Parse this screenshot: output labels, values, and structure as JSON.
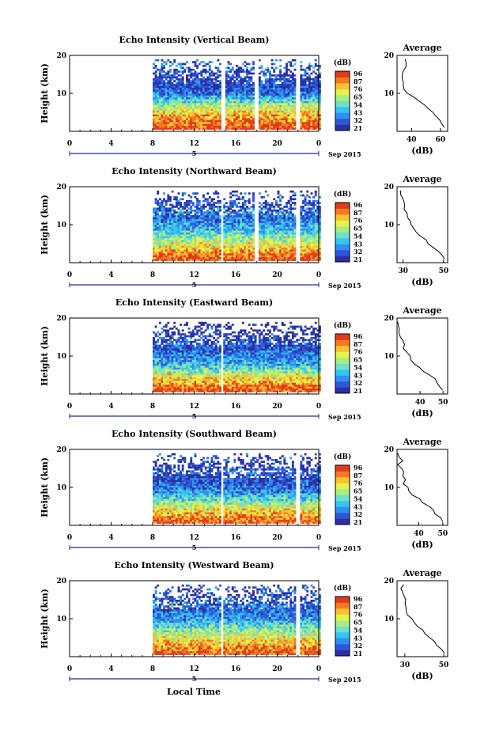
{
  "figure": {
    "xlabel": "Local Time",
    "date_label": "Sep 2015",
    "day_marker": "5"
  },
  "colorbar": {
    "unit_label": "(dB)",
    "ticks": [
      "96",
      "87",
      "76",
      "65",
      "54",
      "43",
      "32",
      "21"
    ],
    "colors": [
      "#2b2fa3",
      "#2f56d6",
      "#2f8ff2",
      "#33c6f0",
      "#6fe0c8",
      "#a8ec84",
      "#e6f24a",
      "#f7c132",
      "#f47a22",
      "#e13a1c"
    ]
  },
  "chart_data": [
    {
      "type": "heatmap",
      "title": "Echo Intensity (Vertical Beam)",
      "ylabel": "Height (km)",
      "x_ticks": [
        "0",
        "4",
        "8",
        "12",
        "16",
        "20",
        "0"
      ],
      "y_ticks": [
        "20",
        "10"
      ],
      "xlim": [
        0,
        24
      ],
      "ylim": [
        0,
        20
      ],
      "data_start_hour": 8,
      "gaps_hours": [
        [
          14.5,
          14.9
        ],
        [
          17.8,
          18.1
        ],
        [
          21.7,
          22.1
        ]
      ],
      "top_height_km": 19,
      "profile": {
        "title": "Average",
        "xlabel": "(dB)",
        "x_ticks": [
          "40",
          "60"
        ],
        "xlim": [
          30,
          65
        ],
        "y_ticks": [
          "20",
          "10"
        ],
        "height_km": [
          1,
          2,
          3,
          4,
          5,
          6,
          7,
          8,
          9,
          10,
          11,
          12,
          13,
          14,
          15,
          16,
          17,
          18,
          19
        ],
        "value_db": [
          63,
          61,
          59,
          57,
          55,
          52,
          49,
          45,
          41,
          37,
          35,
          34,
          34,
          33,
          34,
          35,
          36,
          37,
          35
        ]
      }
    },
    {
      "type": "heatmap",
      "title": "Echo Intensity (Northward Beam)",
      "ylabel": "Height (km)",
      "x_ticks": [
        "0",
        "4",
        "8",
        "12",
        "16",
        "20",
        "0"
      ],
      "y_ticks": [
        "20",
        "10"
      ],
      "xlim": [
        0,
        24
      ],
      "ylim": [
        0,
        20
      ],
      "data_start_hour": 8,
      "gaps_hours": [
        [
          14.5,
          14.8
        ],
        [
          17.8,
          18.1
        ],
        [
          21.8,
          22.1
        ]
      ],
      "top_height_km": 19,
      "profile": {
        "title": "Average",
        "xlabel": "(dB)",
        "x_ticks": [
          "30",
          "50"
        ],
        "xlim": [
          27,
          52
        ],
        "y_ticks": [
          "20",
          "10"
        ],
        "height_km": [
          1,
          2,
          3,
          4,
          5,
          6,
          7,
          8,
          9,
          10,
          11,
          12,
          13,
          14,
          15,
          16,
          17,
          18,
          19
        ],
        "value_db": [
          50,
          49,
          47,
          45,
          43,
          41,
          39,
          37,
          35,
          34,
          33,
          32,
          32,
          31,
          30,
          30,
          29,
          29,
          28
        ]
      }
    },
    {
      "type": "heatmap",
      "title": "Echo Intensity (Eastward Beam)",
      "ylabel": "Height (km)",
      "x_ticks": [
        "0",
        "4",
        "8",
        "12",
        "16",
        "20",
        "0"
      ],
      "y_ticks": [
        "20",
        "10"
      ],
      "xlim": [
        0,
        24
      ],
      "ylim": [
        0,
        20
      ],
      "data_start_hour": 8,
      "gaps_hours": [
        [
          14.5,
          14.8
        ]
      ],
      "top_height_km": 19,
      "profile": {
        "title": "Average",
        "xlabel": "(dB)",
        "x_ticks": [
          "40",
          "50"
        ],
        "xlim": [
          30,
          52
        ],
        "y_ticks": [
          "20",
          "10"
        ],
        "height_km": [
          1,
          2,
          3,
          4,
          5,
          6,
          7,
          8,
          9,
          10,
          11,
          12,
          13,
          14,
          15,
          16,
          17,
          18,
          19
        ],
        "value_db": [
          50,
          49,
          47,
          46,
          44,
          41,
          39,
          37,
          36,
          35,
          34,
          33,
          33,
          32,
          32,
          31,
          31,
          30,
          31
        ]
      }
    },
    {
      "type": "heatmap",
      "title": "Echo Intensity (Southward Beam)",
      "ylabel": "Height (km)",
      "x_ticks": [
        "0",
        "4",
        "8",
        "12",
        "16",
        "20",
        "0"
      ],
      "y_ticks": [
        "20",
        "10"
      ],
      "xlim": [
        0,
        24
      ],
      "ylim": [
        0,
        20
      ],
      "data_start_hour": 8,
      "gaps_hours": [
        [
          14.5,
          14.8
        ],
        [
          21.8,
          22.1
        ]
      ],
      "top_height_km": 19,
      "profile": {
        "title": "Average",
        "xlabel": "(dB)",
        "x_ticks": [
          "40",
          "50"
        ],
        "xlim": [
          31,
          52
        ],
        "y_ticks": [
          "20",
          "10"
        ],
        "height_km": [
          1,
          2,
          3,
          4,
          5,
          6,
          7,
          8,
          9,
          10,
          11,
          12,
          13,
          14,
          15,
          16,
          17,
          18,
          19
        ],
        "value_db": [
          50,
          49,
          47,
          46,
          44,
          42,
          40,
          38,
          36,
          35,
          34,
          34,
          33,
          34,
          33,
          32,
          33,
          32,
          32
        ]
      }
    },
    {
      "type": "heatmap",
      "title": "Echo Intensity (Westward Beam)",
      "ylabel": "Height (km)",
      "x_ticks": [
        "0",
        "4",
        "8",
        "12",
        "16",
        "20",
        "0"
      ],
      "y_ticks": [
        "20",
        "10"
      ],
      "xlim": [
        0,
        24
      ],
      "ylim": [
        0,
        20
      ],
      "data_start_hour": 8,
      "gaps_hours": [
        [
          14.5,
          14.8
        ],
        [
          21.8,
          22.1
        ]
      ],
      "top_height_km": 19,
      "profile": {
        "title": "Average",
        "xlabel": "(dB)",
        "x_ticks": [
          "30",
          "50"
        ],
        "xlim": [
          26,
          52
        ],
        "y_ticks": [
          "20",
          "10"
        ],
        "height_km": [
          1,
          2,
          3,
          4,
          5,
          6,
          7,
          8,
          9,
          10,
          11,
          12,
          13,
          14,
          15,
          16,
          17,
          18,
          19
        ],
        "value_db": [
          50,
          48,
          47,
          45,
          43,
          41,
          39,
          37,
          35,
          33,
          32,
          31,
          31,
          30,
          30,
          29,
          29,
          28,
          29
        ]
      }
    }
  ]
}
